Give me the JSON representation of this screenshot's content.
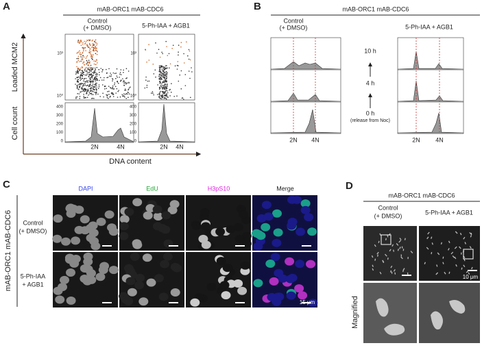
{
  "panels": {
    "A": {
      "label": "A",
      "header": "mAB-ORC1 mAB-CDC6",
      "control": [
        "Control",
        "(+ DMSO)"
      ],
      "treated": "5-Ph-IAA + AGB1",
      "y_label_top": "Loaded MCM2",
      "y_label_bottom": "Cell count",
      "x_label": "DNA content",
      "scatter_ticks_left": [
        "10³",
        "10⁰"
      ],
      "scatter_ticks_right": [
        "10³",
        "10⁰"
      ],
      "count_ticks_left": [
        "400",
        "300",
        "200",
        "100",
        "0"
      ],
      "count_ticks_right": [
        "400",
        "300",
        "200",
        "100",
        "0"
      ],
      "x_ticks_left": [
        "2N",
        "4N"
      ],
      "x_ticks_right": [
        "2N",
        "4N"
      ]
    },
    "B": {
      "label": "B",
      "header": "mAB-ORC1 mAB-CDC6",
      "control": [
        "Control",
        "(+ DMSO)"
      ],
      "treated": "5-Ph-IAA + AGB1",
      "times": [
        "10 h",
        "4 h",
        "0 h"
      ],
      "note": "(release from Noc)",
      "x_ticks_left": [
        "2N",
        "4N"
      ],
      "x_ticks_right": [
        "2N",
        "4N"
      ]
    },
    "C": {
      "label": "C",
      "columns": [
        "DAPI",
        "EdU",
        "H3pS10",
        "Merge"
      ],
      "row_group": "mAB-ORC1 mAB-CDC6",
      "rows": [
        [
          "Control",
          "(+ DMSO)"
        ],
        [
          "5-Ph-IAA",
          "+ AGB1"
        ]
      ],
      "scale": "15 μm"
    },
    "D": {
      "label": "D",
      "header": "mAB-ORC1 mAB-CDC6",
      "control": [
        "Control",
        "(+ DMSO)"
      ],
      "treated": "5-Ph-IAA + AGB1",
      "scale": "10 μm",
      "row": "Magnified"
    }
  }
}
